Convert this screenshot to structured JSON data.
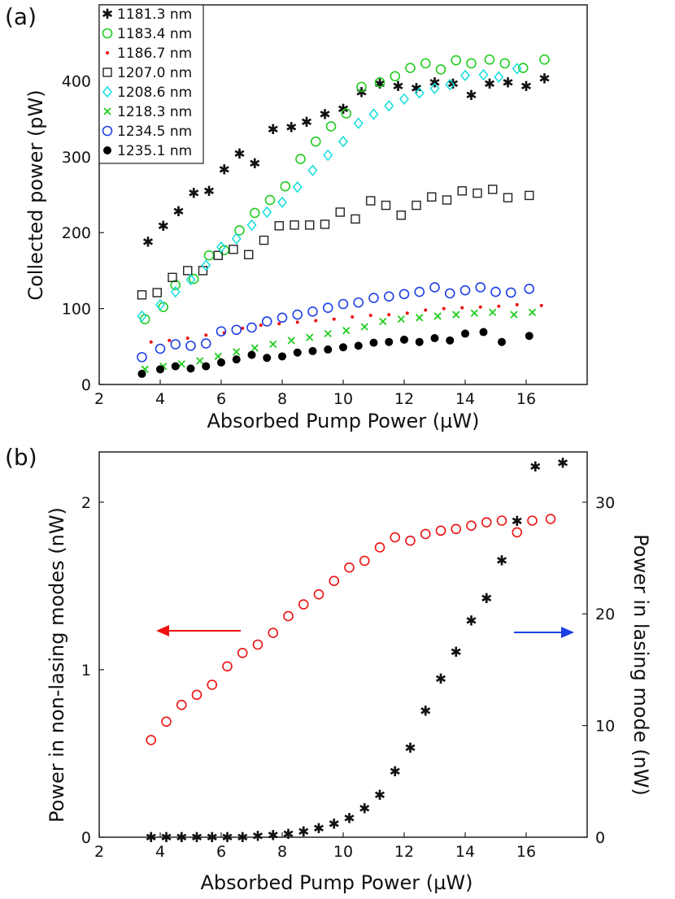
{
  "chart_data": [
    {
      "panel": "(a)",
      "type": "scatter",
      "title": "",
      "xlabel": "Absorbed Pump Power (µW)",
      "ylabel": "Collected power (pW)",
      "xlim": [
        2,
        18
      ],
      "ylim": [
        0,
        500
      ],
      "xticks": [
        2,
        4,
        6,
        8,
        10,
        12,
        14,
        16
      ],
      "yticks": [
        0,
        100,
        200,
        300,
        400
      ],
      "legend_position": "top-left",
      "series": [
        {
          "name": "1181.3 nm",
          "marker": "star",
          "color": "#1f3fe6",
          "x": [
            3.6,
            4.1,
            4.6,
            5.1,
            5.6,
            6.1,
            6.6,
            7.1,
            7.7,
            8.3,
            8.8,
            9.4,
            10.0,
            10.6,
            11.2,
            11.8,
            12.4,
            13.0,
            13.6,
            14.2,
            14.8,
            15.4,
            16.0,
            16.6
          ],
          "y": [
            188,
            209,
            228,
            252,
            255,
            283,
            304,
            291,
            336,
            339,
            346,
            356,
            363,
            385,
            396,
            393,
            390,
            398,
            396,
            381,
            396,
            398,
            393,
            403
          ]
        },
        {
          "name": "1183.4 nm",
          "marker": "circle-open",
          "color": "#22cc22",
          "x": [
            3.5,
            4.1,
            4.5,
            5.1,
            5.6,
            6.1,
            6.6,
            7.1,
            7.6,
            8.1,
            8.6,
            9.1,
            9.6,
            10.1,
            10.6,
            11.2,
            11.7,
            12.2,
            12.7,
            13.2,
            13.7,
            14.2,
            14.8,
            15.3,
            15.9,
            16.6
          ],
          "y": [
            86,
            102,
            131,
            139,
            170,
            177,
            203,
            226,
            243,
            261,
            297,
            320,
            340,
            357,
            392,
            398,
            406,
            417,
            423,
            415,
            427,
            423,
            428,
            423,
            417,
            428
          ]
        },
        {
          "name": "1186.7 nm",
          "marker": "dot",
          "color": "#ee1111",
          "x": [
            3.7,
            4.3,
            4.9,
            5.5,
            6.1,
            6.7,
            7.3,
            7.9,
            8.5,
            9.1,
            9.7,
            10.3,
            10.9,
            11.5,
            12.1,
            12.7,
            13.3,
            13.9,
            14.5,
            15.1,
            15.7,
            16.5
          ],
          "y": [
            56,
            58,
            61,
            65,
            68,
            74,
            78,
            80,
            82,
            84,
            86,
            89,
            91,
            92,
            94,
            98,
            100,
            101,
            102,
            103,
            105,
            104
          ]
        },
        {
          "name": "1207.0 nm",
          "marker": "square-open",
          "color": "#222222",
          "x": [
            3.4,
            3.9,
            4.4,
            4.9,
            5.4,
            5.9,
            6.4,
            6.9,
            7.4,
            7.9,
            8.4,
            8.9,
            9.4,
            9.9,
            10.4,
            10.9,
            11.4,
            11.9,
            12.4,
            12.9,
            13.4,
            13.9,
            14.4,
            14.9,
            15.4,
            16.1
          ],
          "y": [
            118,
            121,
            141,
            150,
            150,
            170,
            178,
            171,
            190,
            209,
            210,
            210,
            211,
            227,
            218,
            242,
            236,
            223,
            236,
            247,
            243,
            255,
            252,
            257,
            246,
            249
          ]
        },
        {
          "name": "1208.6 nm",
          "marker": "diamond-open",
          "color": "#11dddd",
          "x": [
            3.4,
            4.0,
            4.5,
            5.0,
            5.5,
            6.0,
            6.5,
            7.0,
            7.5,
            8.0,
            8.5,
            9.0,
            9.5,
            10.0,
            10.5,
            11.0,
            11.5,
            12.0,
            12.5,
            13.0,
            13.5,
            14.0,
            14.6,
            15.1,
            15.7
          ],
          "y": [
            90,
            105,
            122,
            138,
            157,
            181,
            192,
            210,
            227,
            240,
            260,
            282,
            302,
            320,
            344,
            356,
            367,
            376,
            384,
            390,
            395,
            407,
            408,
            405,
            416
          ]
        },
        {
          "name": "1218.3 nm",
          "marker": "x",
          "color": "#22cc22",
          "x": [
            3.5,
            4.1,
            4.7,
            5.3,
            5.9,
            6.5,
            7.1,
            7.7,
            8.3,
            8.9,
            9.5,
            10.1,
            10.7,
            11.3,
            11.9,
            12.5,
            13.1,
            13.7,
            14.3,
            14.9,
            15.6,
            16.2
          ],
          "y": [
            20,
            24,
            27,
            31,
            37,
            43,
            48,
            53,
            58,
            62,
            67,
            71,
            76,
            83,
            86,
            88,
            90,
            92,
            94,
            95,
            92,
            95
          ]
        },
        {
          "name": "1234.5 nm",
          "marker": "circle-open",
          "color": "#1f3fe6",
          "x": [
            3.4,
            4.0,
            4.5,
            5.0,
            5.5,
            6.0,
            6.5,
            7.0,
            7.5,
            8.0,
            8.5,
            9.0,
            9.5,
            10.0,
            10.5,
            11.0,
            11.5,
            12.0,
            12.5,
            13.0,
            13.5,
            14.0,
            14.5,
            15.0,
            15.5,
            16.1
          ],
          "y": [
            36,
            47,
            53,
            51,
            54,
            70,
            72,
            75,
            83,
            88,
            92,
            96,
            101,
            106,
            108,
            114,
            116,
            119,
            122,
            128,
            120,
            124,
            128,
            122,
            121,
            126
          ]
        },
        {
          "name": "1235.1 nm",
          "marker": "dot-filled",
          "color": "#000000",
          "x": [
            3.4,
            4.0,
            4.5,
            5.0,
            5.5,
            6.0,
            6.5,
            7.0,
            7.5,
            8.0,
            8.5,
            9.0,
            9.5,
            10.0,
            10.5,
            11.0,
            11.5,
            12.0,
            12.5,
            13.0,
            13.5,
            14.0,
            14.6,
            15.2,
            16.1
          ],
          "y": [
            14,
            20,
            24,
            21,
            24,
            29,
            33,
            39,
            35,
            37,
            42,
            44,
            46,
            49,
            51,
            55,
            56,
            59,
            56,
            61,
            58,
            67,
            69,
            56,
            64
          ]
        }
      ]
    },
    {
      "panel": "(b)",
      "type": "scatter",
      "title": "",
      "xlabel": "Absorbed Pump Power (µW)",
      "ylabel": "Power in non-lasing modes (nW)",
      "y2label": "Power in lasing mode (nW)",
      "xlim": [
        2,
        18
      ],
      "ylim": [
        0,
        2.3
      ],
      "y2lim": [
        0,
        34.5
      ],
      "xticks": [
        2,
        4,
        6,
        8,
        10,
        12,
        14,
        16
      ],
      "yticks": [
        0,
        1,
        2
      ],
      "y2ticks": [
        0,
        10,
        20,
        30
      ],
      "series": [
        {
          "name": "non-lasing modes",
          "axis": "left",
          "marker": "circle-open",
          "color": "#ee1111",
          "x": [
            3.7,
            4.2,
            4.7,
            5.2,
            5.7,
            6.2,
            6.7,
            7.2,
            7.7,
            8.2,
            8.7,
            9.2,
            9.7,
            10.2,
            10.7,
            11.2,
            11.7,
            12.2,
            12.7,
            13.2,
            13.7,
            14.2,
            14.7,
            15.2,
            15.7,
            16.2,
            16.8
          ],
          "y": [
            0.58,
            0.69,
            0.79,
            0.85,
            0.91,
            1.02,
            1.1,
            1.15,
            1.22,
            1.32,
            1.39,
            1.45,
            1.53,
            1.61,
            1.65,
            1.73,
            1.79,
            1.77,
            1.81,
            1.83,
            1.84,
            1.86,
            1.88,
            1.89,
            1.82,
            1.89,
            1.9
          ]
        },
        {
          "name": "lasing mode",
          "axis": "right",
          "marker": "star",
          "color": "#1f3fe6",
          "x": [
            3.7,
            4.2,
            4.7,
            5.2,
            5.7,
            6.2,
            6.7,
            7.2,
            7.7,
            8.2,
            8.7,
            9.2,
            9.7,
            10.2,
            10.7,
            11.2,
            11.7,
            12.2,
            12.7,
            13.2,
            13.7,
            14.2,
            14.7,
            15.2,
            15.7,
            16.3,
            17.2
          ],
          "y": [
            0,
            0,
            0,
            0,
            0,
            0,
            0,
            0.1,
            0.2,
            0.3,
            0.5,
            0.8,
            1.2,
            1.7,
            2.6,
            3.8,
            5.9,
            8.0,
            11.3,
            14.2,
            16.6,
            19.4,
            21.4,
            24.8,
            28.3,
            33.2,
            33.5
          ]
        }
      ],
      "arrows": [
        {
          "direction": "left",
          "color": "#ee1111",
          "points_to": "left axis"
        },
        {
          "direction": "right",
          "color": "#1f3fe6",
          "points_to": "right axis"
        }
      ]
    }
  ]
}
